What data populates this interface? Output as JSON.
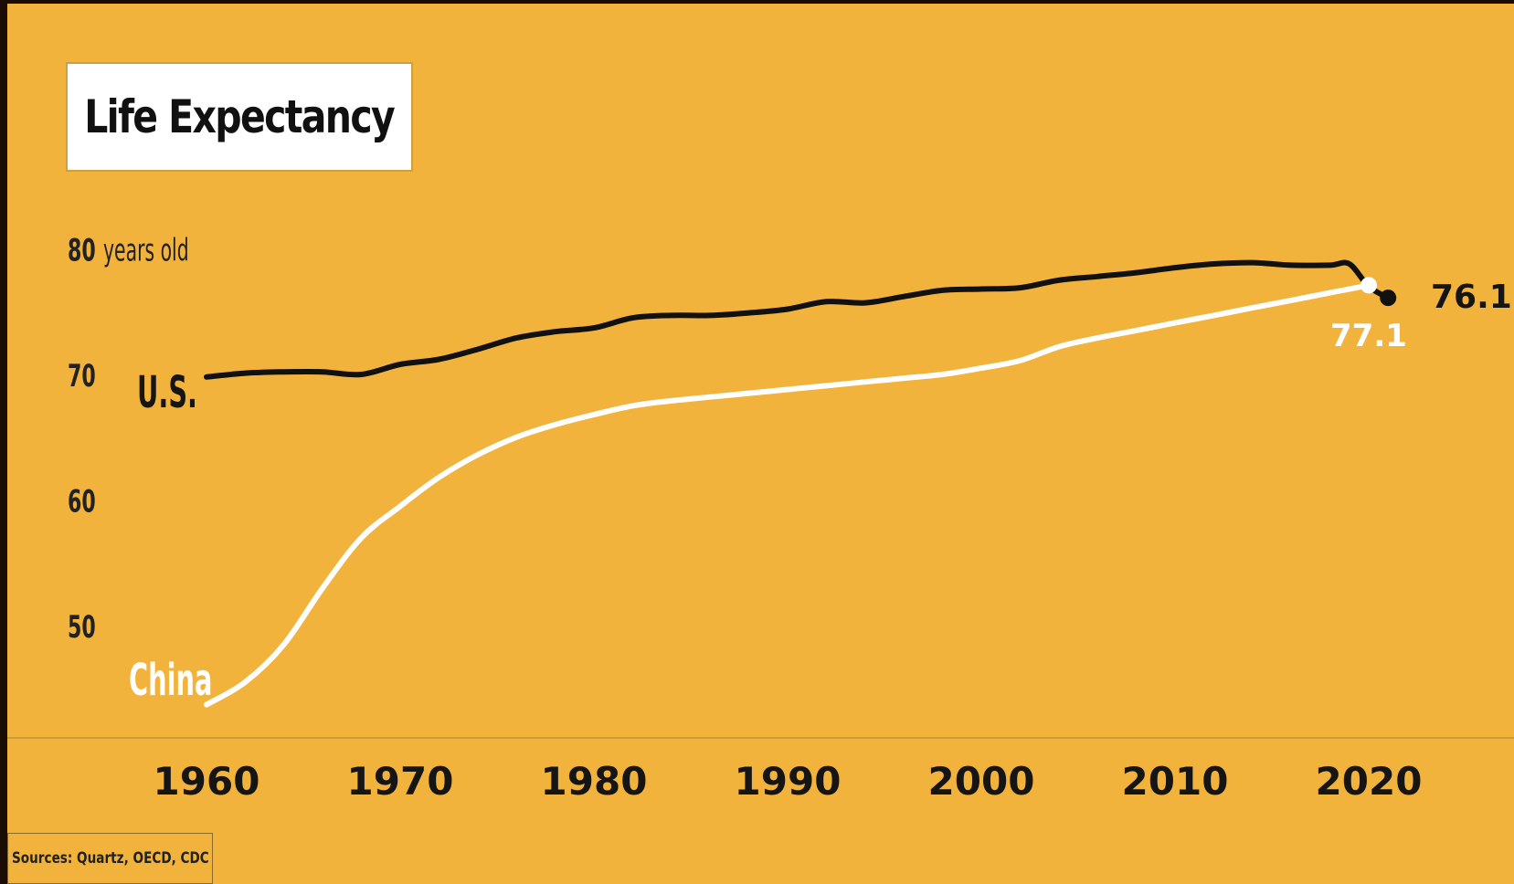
{
  "chart_data": {
    "type": "line",
    "title": "Life Expectancy",
    "ylabel": "years old",
    "source": "Sources: Quartz, OECD, CDC",
    "x_ticks": [
      "1960",
      "1970",
      "1980",
      "1990",
      "2000",
      "2010",
      "2020"
    ],
    "y_ticks": [
      "50",
      "60",
      "70",
      "80"
    ],
    "xlim": [
      1960,
      2022
    ],
    "ylim": [
      40,
      80
    ],
    "grid": false,
    "colors": {
      "background": "#f2b33d",
      "us": "#111111",
      "china": "#ffffff"
    },
    "series": [
      {
        "name": "U.S.",
        "x": [
          1960,
          1962,
          1964,
          1966,
          1968,
          1970,
          1972,
          1974,
          1976,
          1978,
          1980,
          1982,
          1984,
          1986,
          1988,
          1990,
          1992,
          1994,
          1996,
          1998,
          2000,
          2002,
          2004,
          2006,
          2008,
          2010,
          2012,
          2014,
          2016,
          2018,
          2019,
          2020,
          2021
        ],
        "y": [
          69.8,
          70.1,
          70.2,
          70.2,
          70.0,
          70.8,
          71.2,
          72.0,
          72.9,
          73.4,
          73.7,
          74.5,
          74.7,
          74.7,
          74.9,
          75.2,
          75.8,
          75.7,
          76.2,
          76.7,
          76.8,
          76.9,
          77.5,
          77.8,
          78.1,
          78.5,
          78.8,
          78.9,
          78.7,
          78.7,
          78.8,
          77.0,
          76.1
        ],
        "end_label": "76.1"
      },
      {
        "name": "China",
        "x": [
          1960,
          1962,
          1964,
          1966,
          1968,
          1970,
          1972,
          1974,
          1976,
          1978,
          1980,
          1982,
          1984,
          1986,
          1988,
          1990,
          1992,
          1994,
          1996,
          1998,
          2000,
          2002,
          2004,
          2006,
          2008,
          2010,
          2012,
          2014,
          2016,
          2018,
          2020
        ],
        "y": [
          43.7,
          45.5,
          48.5,
          53.0,
          57.0,
          59.5,
          61.8,
          63.6,
          65.0,
          66.0,
          66.8,
          67.5,
          67.9,
          68.2,
          68.5,
          68.8,
          69.1,
          69.4,
          69.7,
          70.0,
          70.5,
          71.1,
          72.2,
          72.9,
          73.5,
          74.1,
          74.7,
          75.3,
          75.9,
          76.5,
          77.1
        ],
        "end_label": "77.1"
      }
    ]
  }
}
